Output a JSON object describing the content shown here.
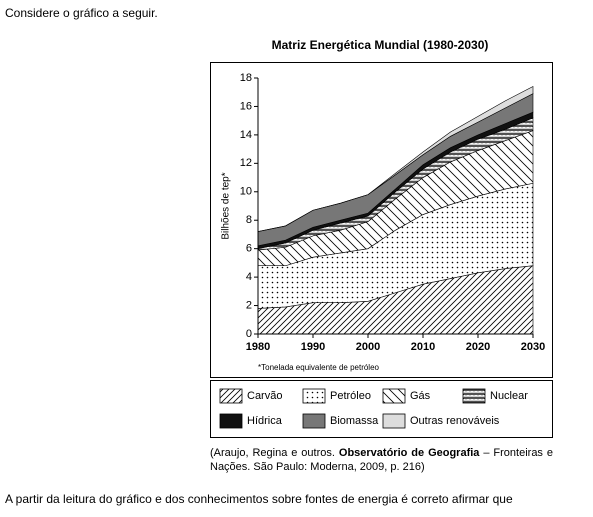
{
  "intro": "Considere o gráfico a seguir.",
  "chart_data": {
    "type": "area",
    "stacked": true,
    "title": "Matriz Energética Mundial (1980-2030)",
    "y_label": "Bilhões de tep*",
    "footnote": "*Tonelada equivalente de petróleo",
    "x": [
      1980,
      1985,
      1990,
      1995,
      2000,
      2005,
      2010,
      2015,
      2020,
      2025,
      2030
    ],
    "xlim": [
      1980,
      2030
    ],
    "xticks": [
      1980,
      1990,
      2000,
      2010,
      2020,
      2030
    ],
    "ylim": [
      0,
      18
    ],
    "yticks": [
      0,
      2,
      4,
      6,
      8,
      10,
      12,
      14,
      16,
      18
    ],
    "series": [
      {
        "name": "Carvão",
        "color": "#000000",
        "pattern": "diagonal",
        "values": [
          1.8,
          1.9,
          2.2,
          2.2,
          2.3,
          2.9,
          3.5,
          3.9,
          4.3,
          4.6,
          4.8
        ]
      },
      {
        "name": "Petróleo",
        "color": "#000000",
        "pattern": "dots",
        "values": [
          3.0,
          2.9,
          3.2,
          3.5,
          3.7,
          4.4,
          4.9,
          5.2,
          5.4,
          5.6,
          5.8
        ]
      },
      {
        "name": "Gás",
        "color": "#000000",
        "pattern": "backslash",
        "values": [
          1.1,
          1.3,
          1.5,
          1.6,
          1.9,
          2.2,
          2.6,
          3.0,
          3.2,
          3.4,
          3.7
        ]
      },
      {
        "name": "Nuclear",
        "color": "#000000",
        "pattern": "zigzag",
        "values": [
          0.1,
          0.3,
          0.4,
          0.5,
          0.4,
          0.5,
          0.6,
          0.7,
          0.8,
          0.8,
          0.9
        ]
      },
      {
        "name": "Hídrica",
        "color": "#111111",
        "pattern": "solid",
        "values": [
          0.2,
          0.2,
          0.2,
          0.2,
          0.2,
          0.2,
          0.3,
          0.3,
          0.3,
          0.4,
          0.4
        ]
      },
      {
        "name": "Biomassa",
        "color": "#777777",
        "pattern": "solid",
        "values": [
          1.0,
          1.0,
          1.2,
          1.2,
          1.3,
          1.0,
          0.7,
          0.8,
          0.9,
          1.1,
          1.3
        ]
      },
      {
        "name": "Outras renováveis",
        "color": "#dddddd",
        "pattern": "solid",
        "values": [
          0,
          0,
          0,
          0,
          0,
          0.1,
          0.2,
          0.3,
          0.4,
          0.5,
          0.5
        ]
      }
    ]
  },
  "caption": {
    "before": "(Araujo, Regina e outros. ",
    "bold": "Observatório de Geografia",
    "after": " – Fronteiras e Nações. São Paulo: Moderna, 2009, p. 216)"
  },
  "outro": "A partir da leitura do gráfico e dos conhecimentos sobre fontes de energia é correto afirmar que"
}
